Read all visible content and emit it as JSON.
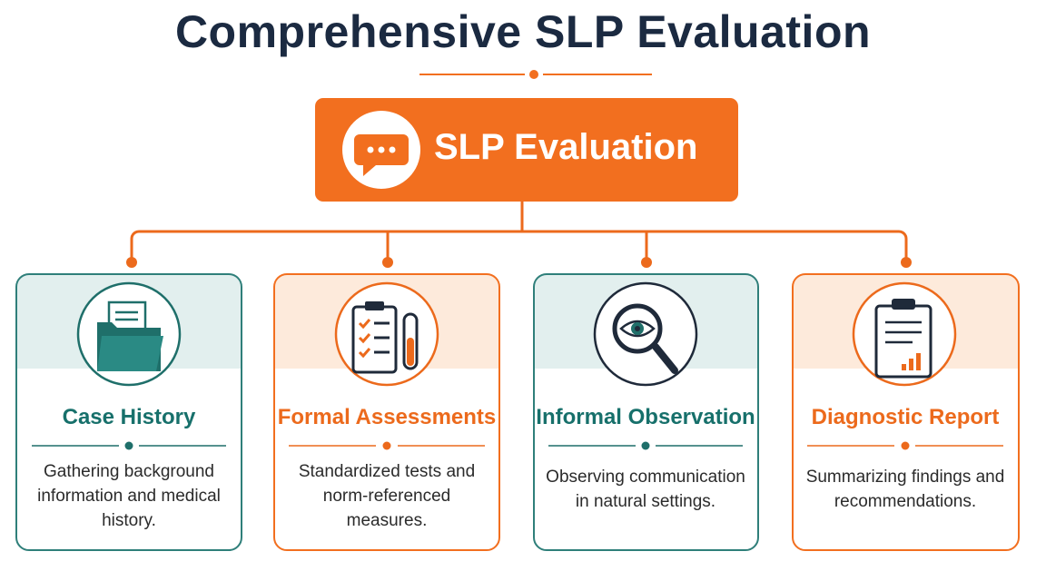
{
  "title": "Comprehensive SLP Evaluation",
  "root": {
    "label": "SLP Evaluation"
  },
  "cards": [
    {
      "title": "Case History",
      "description": "Gathering background information and medical history."
    },
    {
      "title": "Formal Assessments",
      "description": "Standardized tests and norm-referenced measures."
    },
    {
      "title": "Informal Observation",
      "description": "Observing communication in natural settings."
    },
    {
      "title": "Diagnostic Report",
      "description": "Summarizing findings and recommendations."
    }
  ]
}
